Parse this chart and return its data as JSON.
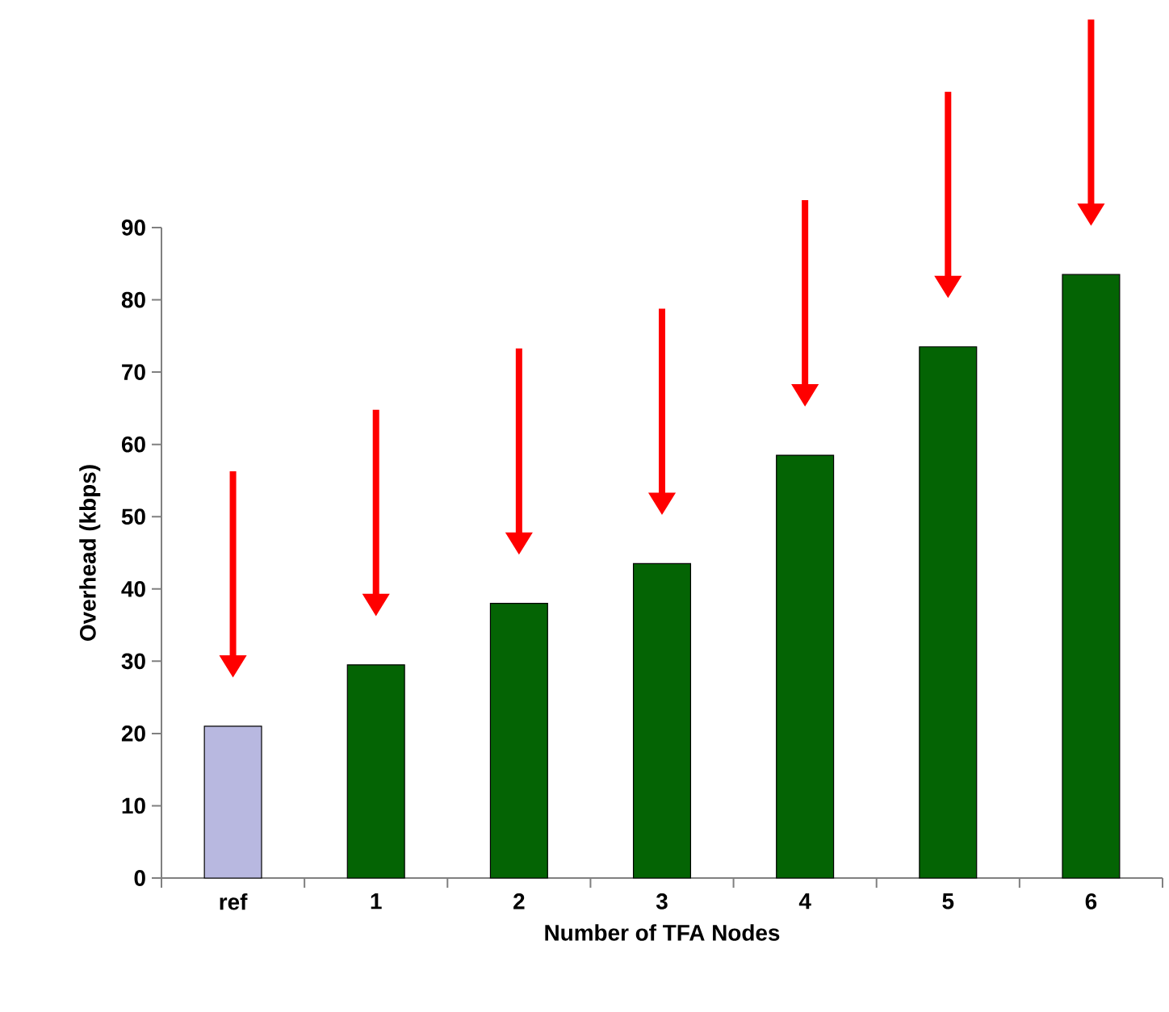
{
  "chart_data": {
    "type": "bar",
    "xlabel": "Number of TFA Nodes",
    "ylabel": "Overhead (kbps)",
    "categories": [
      "ref",
      "1",
      "2",
      "3",
      "4",
      "5",
      "6"
    ],
    "values": [
      21,
      29.5,
      38,
      43.5,
      58.5,
      73.5,
      83.5
    ],
    "colors": [
      "#b8b8e0",
      "#046404",
      "#046404",
      "#046404",
      "#046404",
      "#046404",
      "#046404"
    ],
    "ylim": [
      0,
      90
    ],
    "yticks": [
      0,
      10,
      20,
      30,
      40,
      50,
      60,
      70,
      80,
      90
    ]
  }
}
